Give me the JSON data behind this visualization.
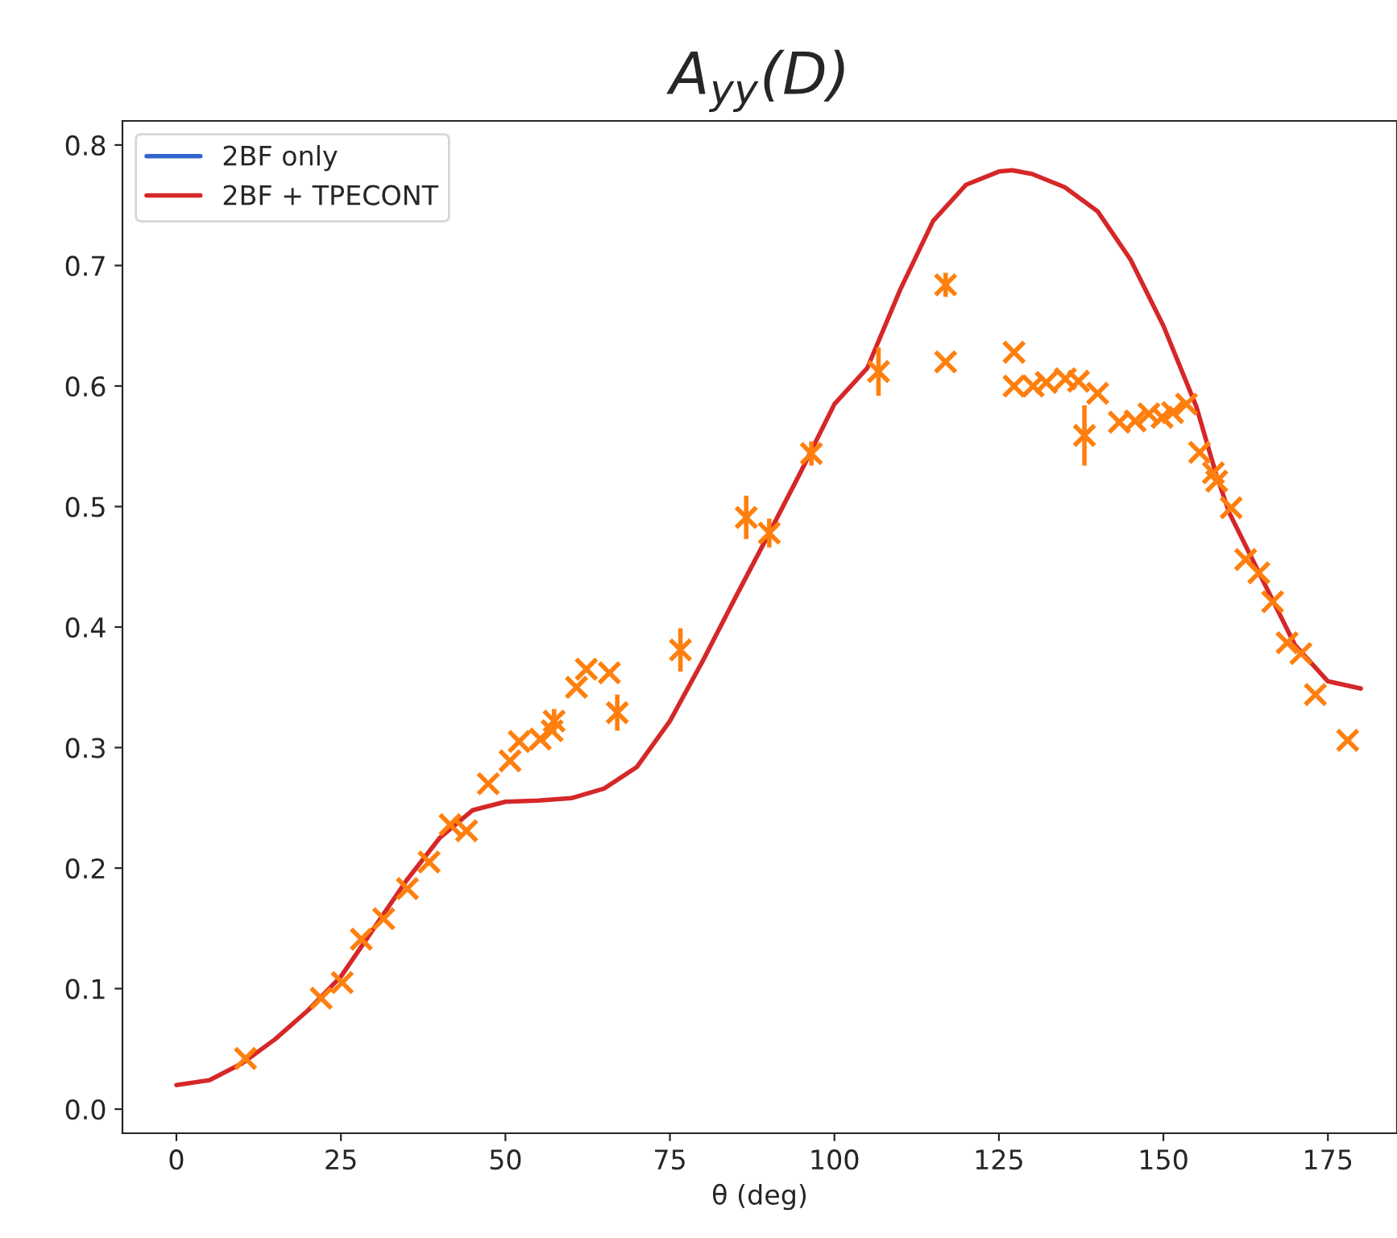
{
  "chart_data": {
    "type": "line",
    "title": "A$_{yy}$(D)",
    "xlabel": "θ (deg)",
    "xlim": [
      -8.2,
      185.5
    ],
    "xticks": [
      0,
      25,
      50,
      75,
      100,
      125,
      150,
      175
    ],
    "ylim": [
      -0.02,
      0.82
    ],
    "yticks": [
      {
        "value": 0,
        "label": "0.0"
      },
      0.1,
      0.2,
      0.3,
      0.4,
      0.5,
      0.6,
      0.7,
      0.8
    ],
    "grid": false,
    "legend": "top left",
    "series": [
      {
        "name": "2BF only",
        "color": "#3366cc"
      },
      {
        "name": "2BF + TPECONT",
        "color": "#d62728",
        "x": [
          0,
          5,
          10,
          15,
          20,
          25,
          30,
          35,
          40,
          45,
          50,
          55,
          60,
          65,
          70,
          75,
          80,
          85,
          90,
          95,
          100,
          105,
          110,
          115,
          120,
          125,
          127,
          130,
          135,
          140,
          145,
          150,
          155,
          158,
          160,
          165,
          170,
          175,
          180
        ],
        "values": [
          0.02,
          0.024,
          0.038,
          0.058,
          0.082,
          0.11,
          0.15,
          0.19,
          0.225,
          0.248,
          0.255,
          0.256,
          0.258,
          0.266,
          0.284,
          0.322,
          0.372,
          0.425,
          0.477,
          0.53,
          0.585,
          0.615,
          0.68,
          0.737,
          0.767,
          0.778,
          0.779,
          0.776,
          0.765,
          0.745,
          0.705,
          0.65,
          0.583,
          0.527,
          0.495,
          0.44,
          0.385,
          0.355,
          0.349
        ]
      },
      {
        "type": "scatter",
        "marker": "cross",
        "color": "#ff7f0e",
        "x": [
          10.5,
          22.0,
          25.2,
          28.1,
          31.5,
          35.1,
          38.4,
          41.6,
          44.1,
          47.4,
          50.7,
          52.1,
          55.3,
          57.1,
          57.4,
          60.8,
          62.3,
          65.8,
          67.0,
          76.6,
          86.6,
          90.1,
          96.5,
          106.7,
          116.9,
          116.9,
          127.3,
          127.3,
          130.2,
          132.2,
          135.1,
          137.1,
          138.0,
          140.0,
          143.3,
          145.7,
          147.8,
          149.8,
          151.4,
          153.5,
          155.5,
          157.6,
          158.1,
          160.3,
          162.5,
          164.5,
          166.6,
          168.8,
          170.9,
          173.1,
          178.0
        ],
        "values": [
          0.042,
          0.092,
          0.105,
          0.141,
          0.158,
          0.183,
          0.205,
          0.236,
          0.231,
          0.27,
          0.289,
          0.305,
          0.307,
          0.314,
          0.322,
          0.35,
          0.365,
          0.362,
          0.329,
          0.381,
          0.491,
          0.478,
          0.544,
          0.612,
          0.684,
          0.62,
          0.628,
          0.6,
          0.6,
          0.603,
          0.606,
          0.604,
          0.559,
          0.594,
          0.57,
          0.571,
          0.577,
          0.574,
          0.578,
          0.585,
          0.545,
          0.528,
          0.521,
          0.499,
          0.456,
          0.445,
          0.421,
          0.387,
          0.378,
          0.344,
          0.306
        ],
        "errors": [
          null,
          null,
          null,
          null,
          null,
          null,
          null,
          null,
          null,
          null,
          null,
          null,
          null,
          null,
          0.01,
          null,
          null,
          null,
          0.015,
          0.018,
          0.018,
          0.012,
          0.01,
          0.02,
          0.01,
          null,
          null,
          null,
          null,
          null,
          null,
          null,
          0.025,
          null,
          null,
          null,
          null,
          null,
          null,
          null,
          null,
          null,
          null,
          null,
          null,
          null,
          null,
          null,
          null,
          null,
          null
        ]
      }
    ]
  }
}
